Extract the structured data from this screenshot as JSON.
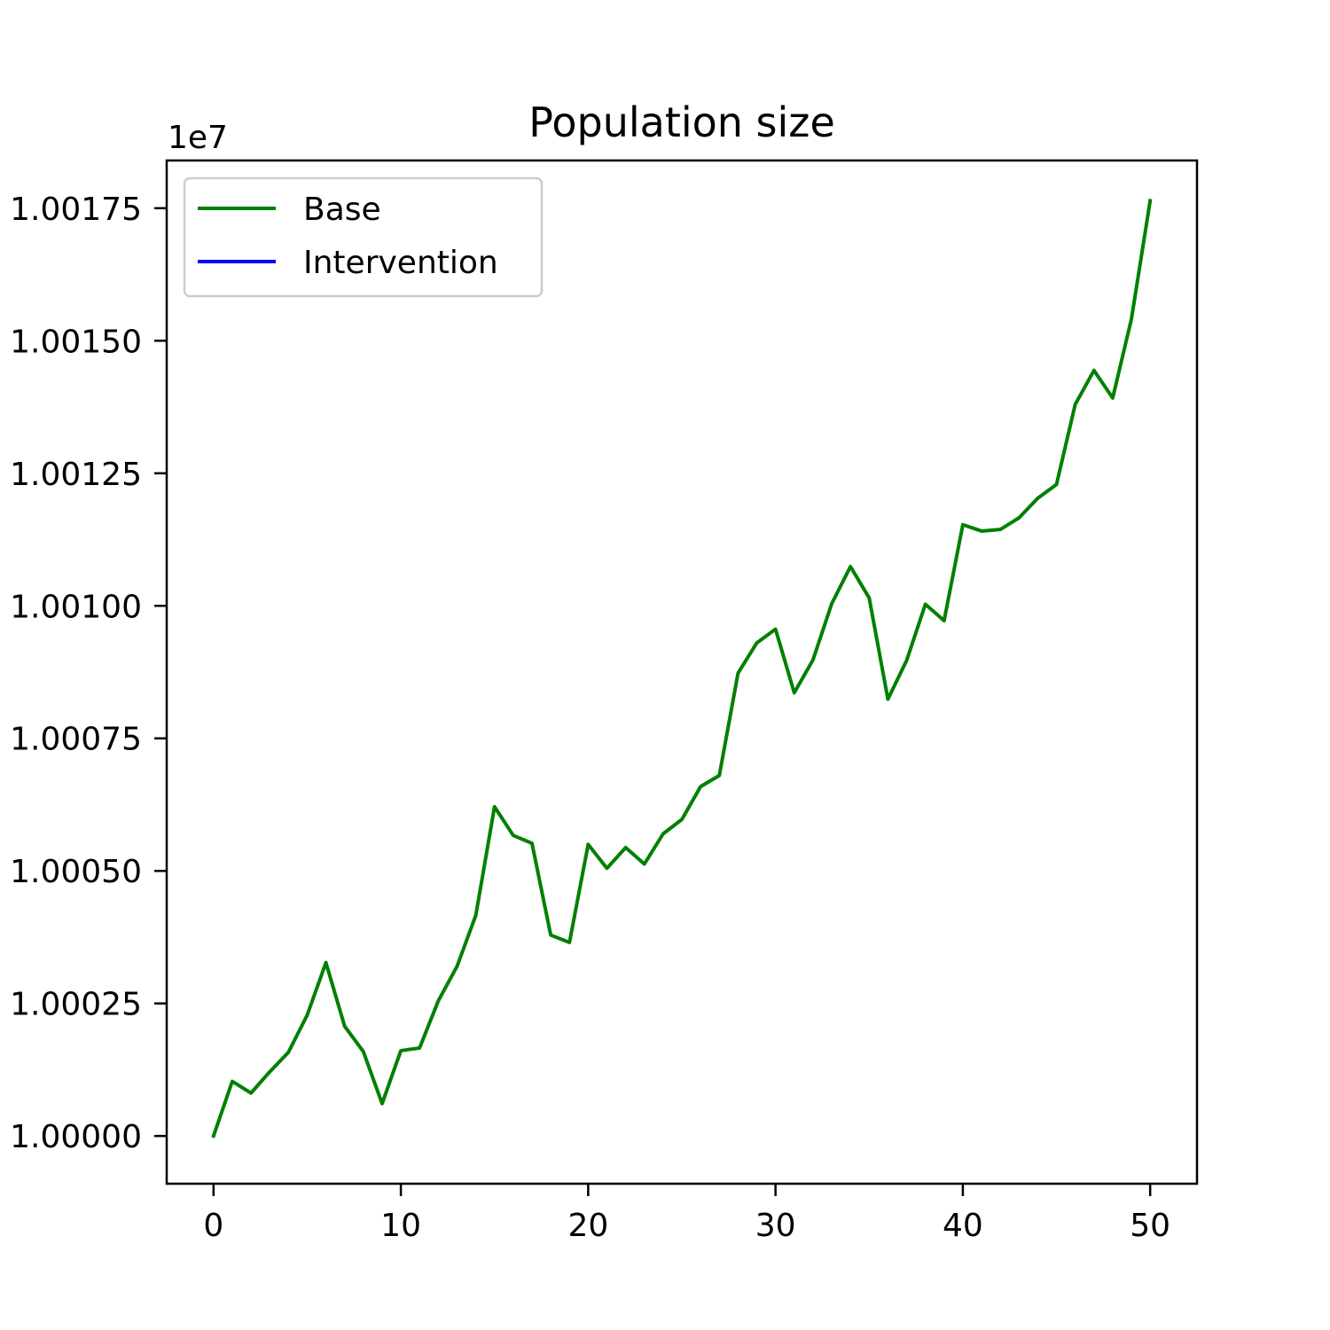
{
  "chart_data": {
    "type": "line",
    "title": "Population size",
    "xlabel": "",
    "ylabel": "",
    "y_offset_label": "1e7",
    "xlim": [
      -2.5,
      52.5
    ],
    "ylim": [
      0.99991,
      1.00184
    ],
    "x_ticks": [
      0,
      10,
      20,
      30,
      40,
      50
    ],
    "x_tick_labels": [
      "0",
      "10",
      "20",
      "30",
      "40",
      "50"
    ],
    "y_ticks": [
      1.0,
      1.00025,
      1.0005,
      1.00075,
      1.001,
      1.00125,
      1.0015,
      1.00175
    ],
    "y_tick_labels": [
      "1.00000",
      "1.00025",
      "1.00050",
      "1.00075",
      "1.00100",
      "1.00125",
      "1.00150",
      "1.00175"
    ],
    "grid": false,
    "legend_position": "top-left",
    "series": [
      {
        "name": "Base",
        "color": "#008000",
        "x": [
          0,
          1,
          2,
          3,
          4,
          5,
          6,
          7,
          8,
          9,
          10,
          11,
          12,
          13,
          14,
          15,
          16,
          17,
          18,
          19,
          20,
          21,
          22,
          23,
          24,
          25,
          26,
          27,
          28,
          29,
          30,
          31,
          32,
          33,
          34,
          35,
          36,
          37,
          38,
          39,
          40,
          41,
          42,
          43,
          44,
          45,
          46,
          47,
          48,
          49,
          50
        ],
        "y": [
          1.0,
          1.000103,
          1.000081,
          1.000121,
          1.000158,
          1.000228,
          1.000327,
          1.000207,
          1.000159,
          1.000061,
          1.000161,
          1.000166,
          1.000255,
          1.00032,
          1.000416,
          1.000621,
          1.000567,
          1.000552,
          1.000379,
          1.000365,
          1.00055,
          1.000505,
          1.000544,
          1.000513,
          1.00057,
          1.000597,
          1.000659,
          1.00068,
          1.000873,
          1.00093,
          1.000956,
          1.000836,
          1.000898,
          1.001004,
          1.001074,
          1.001015,
          1.000824,
          1.000897,
          1.001003,
          1.000972,
          1.001153,
          1.001141,
          1.001144,
          1.001166,
          1.001203,
          1.001229,
          1.00138,
          1.001444,
          1.001392,
          1.001541,
          1.001764
        ]
      },
      {
        "name": "Intervention",
        "color": "#0000ff",
        "x": [],
        "y": []
      }
    ]
  }
}
